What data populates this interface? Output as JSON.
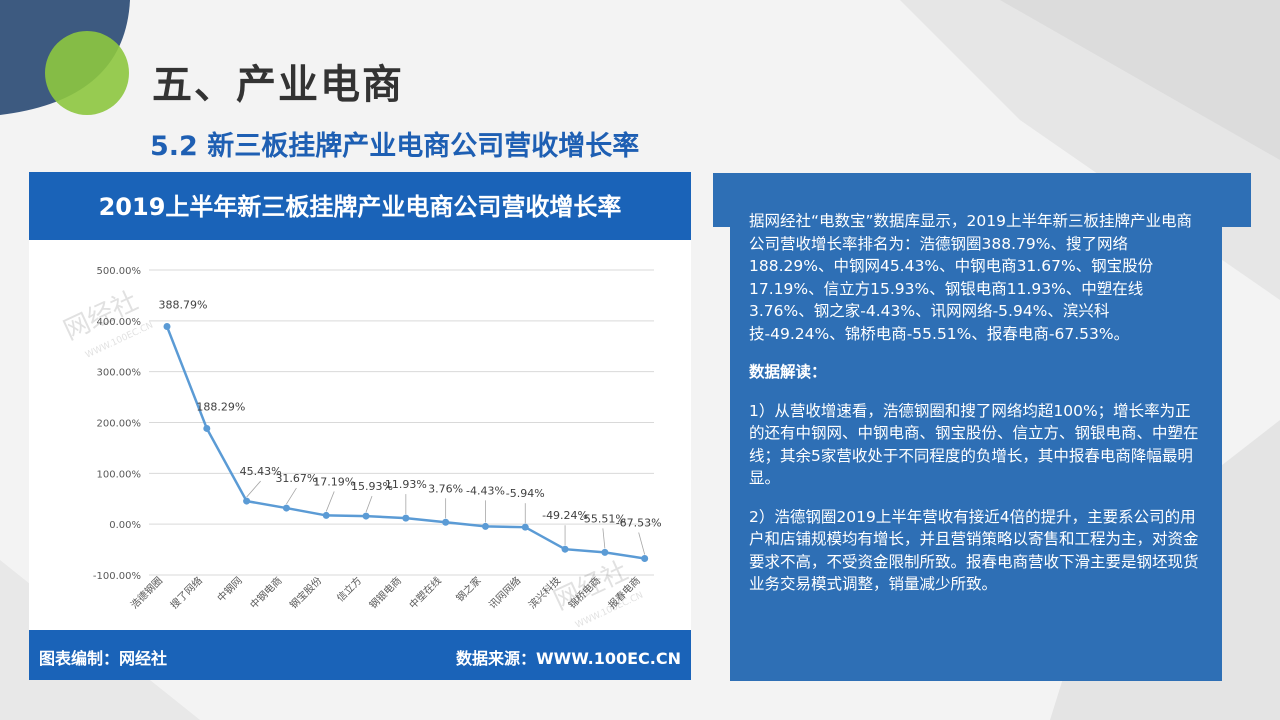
{
  "page": {
    "title": "五、产业电商",
    "subtitle": "5.2 新三板挂牌产业电商公司营收增长率"
  },
  "chart_panel": {
    "header": "2019上半年新三板挂牌产业电商公司营收增长率",
    "footer_left": "图表编制：网经社",
    "footer_right": "数据来源：WWW.100EC.CN",
    "watermark": "网经社",
    "watermark_url": "WWW.100EC.CN"
  },
  "text_panel": {
    "intro": "据网经社“电数宝”数据库显示，2019上半年新三板挂牌产业电商公司营收增长率排名为：浩德钢圈388.79%、搜了网络188.29%、中钢网45.43%、中钢电商31.67%、钢宝股份17.19%、信立方15.93%、钢银电商11.93%、中塑在线3.76%、钢之家-4.43%、讯网网络-5.94%、滨兴科技-49.24%、锦桥电商-55.51%、报春电商-67.53%。",
    "heading": "数据解读：",
    "point1": "1）从营收增速看，浩德钢圈和搜了网络均超100%；增长率为正的还有中钢网、中钢电商、钢宝股份、信立方、钢银电商、中塑在线；其余5家营收处于不同程度的负增长，其中报春电商降幅最明显。",
    "point2": "2）浩德钢圈2019上半年营收有接近4倍的提升，主要系公司的用户和店铺规模均有增长，并且营销策略以寄售和工程为主，对资金要求不高，不受资金限制所致。报春电商营收下滑主要是钢坯现货业务交易模式调整，销量减少所致。"
  },
  "colors": {
    "primary_blue": "#1a63b8",
    "panel_blue": "#2e6fb5",
    "line": "#5b9bd5",
    "accent_green": "#8dc63f",
    "dark_blue_shape": "#3d5a80"
  },
  "chart_data": {
    "type": "line",
    "title": "2019上半年新三板挂牌产业电商公司营收增长率",
    "categories": [
      "浩德钢圈",
      "搜了网络",
      "中钢网",
      "中钢电商",
      "钢宝股份",
      "信立方",
      "钢银电商",
      "中塑在线",
      "钢之家",
      "讯网网络",
      "滨兴科技",
      "锦桥电商",
      "报春电商"
    ],
    "series": [
      {
        "values": [
          388.79,
          188.29,
          45.43,
          31.67,
          17.19,
          15.93,
          11.93,
          3.76,
          -4.43,
          -5.94,
          -49.24,
          -55.51,
          -67.53
        ]
      }
    ],
    "data_labels": [
      "388.79%",
      "188.29%",
      "45.43%",
      "31.67%",
      "17.19%",
      "15.93%",
      "11.93%",
      "3.76%",
      "-4.43%",
      "-5.94%",
      "-49.24%",
      "-55.51%",
      "-67.53%"
    ],
    "yticks": [
      500,
      400,
      300,
      200,
      100,
      0,
      -100
    ],
    "ytick_labels": [
      "500.00%",
      "400.00%",
      "300.00%",
      "200.00%",
      "100.00%",
      "0.00%",
      "-100.00%"
    ],
    "ylim": [
      -100,
      500
    ],
    "xlabel": "",
    "ylabel": "",
    "grid": true,
    "legend": "none"
  }
}
